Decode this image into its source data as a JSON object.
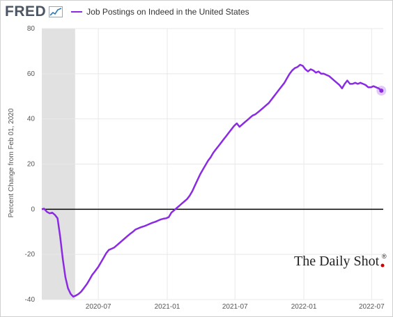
{
  "header": {
    "logo": "FRED",
    "logo_mark_icon": "fred-chart-icon"
  },
  "chart_data": {
    "type": "line",
    "series": [
      {
        "name": "Job Postings on Indeed in the United States",
        "color": "#8A2BE2",
        "points": [
          [
            "2020-02-01",
            0
          ],
          [
            "2020-02-07",
            0.3
          ],
          [
            "2020-02-15",
            -1.2
          ],
          [
            "2020-02-22",
            -1.8
          ],
          [
            "2020-02-29",
            -1.5
          ],
          [
            "2020-03-07",
            -2.5
          ],
          [
            "2020-03-14",
            -4
          ],
          [
            "2020-03-21",
            -12
          ],
          [
            "2020-03-28",
            -22
          ],
          [
            "2020-04-04",
            -30
          ],
          [
            "2020-04-11",
            -35
          ],
          [
            "2020-04-18",
            -37.5
          ],
          [
            "2020-04-25",
            -38.7
          ],
          [
            "2020-05-02",
            -38.2
          ],
          [
            "2020-05-09",
            -37.5
          ],
          [
            "2020-05-16",
            -36.5
          ],
          [
            "2020-05-23",
            -35
          ],
          [
            "2020-06-01",
            -33
          ],
          [
            "2020-06-08",
            -31
          ],
          [
            "2020-06-15",
            -29
          ],
          [
            "2020-06-22",
            -27.5
          ],
          [
            "2020-07-01",
            -25.5
          ],
          [
            "2020-07-08",
            -23.5
          ],
          [
            "2020-07-15",
            -21.5
          ],
          [
            "2020-07-22",
            -19.5
          ],
          [
            "2020-07-29",
            -18
          ],
          [
            "2020-08-05",
            -17.5
          ],
          [
            "2020-08-12",
            -17
          ],
          [
            "2020-08-19",
            -16
          ],
          [
            "2020-08-26",
            -15
          ],
          [
            "2020-09-02",
            -14
          ],
          [
            "2020-09-09",
            -13
          ],
          [
            "2020-09-16",
            -12
          ],
          [
            "2020-09-23",
            -11
          ],
          [
            "2020-10-01",
            -10
          ],
          [
            "2020-10-08",
            -9
          ],
          [
            "2020-10-15",
            -8.5
          ],
          [
            "2020-10-22",
            -8
          ],
          [
            "2020-11-01",
            -7.5
          ],
          [
            "2020-11-08",
            -7
          ],
          [
            "2020-11-15",
            -6.5
          ],
          [
            "2020-11-22",
            -6
          ],
          [
            "2020-12-01",
            -5.5
          ],
          [
            "2020-12-08",
            -5
          ],
          [
            "2020-12-15",
            -4.5
          ],
          [
            "2020-12-22",
            -4.2
          ],
          [
            "2020-12-29",
            -4
          ],
          [
            "2021-01-05",
            -3.5
          ],
          [
            "2021-01-12",
            -1.5
          ],
          [
            "2021-01-19",
            -0.5
          ],
          [
            "2021-01-26",
            0.5
          ],
          [
            "2021-02-02",
            1.5
          ],
          [
            "2021-02-09",
            2.5
          ],
          [
            "2021-02-16",
            3.5
          ],
          [
            "2021-02-23",
            4.5
          ],
          [
            "2021-03-02",
            6
          ],
          [
            "2021-03-09",
            8
          ],
          [
            "2021-03-16",
            10.5
          ],
          [
            "2021-03-23",
            13
          ],
          [
            "2021-03-30",
            15.5
          ],
          [
            "2021-04-06",
            17.5
          ],
          [
            "2021-04-13",
            19.5
          ],
          [
            "2021-04-20",
            21.5
          ],
          [
            "2021-04-27",
            23
          ],
          [
            "2021-05-04",
            25
          ],
          [
            "2021-05-11",
            26.5
          ],
          [
            "2021-05-18",
            28
          ],
          [
            "2021-05-25",
            29.5
          ],
          [
            "2021-06-01",
            31
          ],
          [
            "2021-06-08",
            32.5
          ],
          [
            "2021-06-15",
            34
          ],
          [
            "2021-06-22",
            35.5
          ],
          [
            "2021-06-29",
            37
          ],
          [
            "2021-07-06",
            38
          ],
          [
            "2021-07-13",
            36.5
          ],
          [
            "2021-07-20",
            37.5
          ],
          [
            "2021-07-27",
            38.5
          ],
          [
            "2021-08-03",
            39.5
          ],
          [
            "2021-08-10",
            40.5
          ],
          [
            "2021-08-17",
            41.5
          ],
          [
            "2021-08-24",
            42
          ],
          [
            "2021-09-01",
            43
          ],
          [
            "2021-09-08",
            44
          ],
          [
            "2021-09-15",
            45
          ],
          [
            "2021-09-22",
            46
          ],
          [
            "2021-09-29",
            47
          ],
          [
            "2021-10-06",
            48.5
          ],
          [
            "2021-10-13",
            50
          ],
          [
            "2021-10-20",
            51.5
          ],
          [
            "2021-10-27",
            53
          ],
          [
            "2021-11-03",
            54.5
          ],
          [
            "2021-11-10",
            56
          ],
          [
            "2021-11-17",
            58
          ],
          [
            "2021-11-24",
            60
          ],
          [
            "2021-12-01",
            61.5
          ],
          [
            "2021-12-08",
            62.5
          ],
          [
            "2021-12-15",
            63
          ],
          [
            "2021-12-22",
            64
          ],
          [
            "2021-12-29",
            63.5
          ],
          [
            "2022-01-05",
            62
          ],
          [
            "2022-01-12",
            61
          ],
          [
            "2022-01-19",
            62
          ],
          [
            "2022-01-26",
            61.5
          ],
          [
            "2022-02-02",
            60.5
          ],
          [
            "2022-02-09",
            61
          ],
          [
            "2022-02-16",
            60
          ],
          [
            "2022-02-23",
            60
          ],
          [
            "2022-03-02",
            59.5
          ],
          [
            "2022-03-09",
            59
          ],
          [
            "2022-03-16",
            58
          ],
          [
            "2022-03-23",
            57
          ],
          [
            "2022-03-30",
            56
          ],
          [
            "2022-04-06",
            55
          ],
          [
            "2022-04-13",
            53.5
          ],
          [
            "2022-04-20",
            55.5
          ],
          [
            "2022-04-27",
            57
          ],
          [
            "2022-05-04",
            55.5
          ],
          [
            "2022-05-11",
            55.5
          ],
          [
            "2022-05-18",
            56
          ],
          [
            "2022-05-25",
            55.5
          ],
          [
            "2022-06-01",
            56
          ],
          [
            "2022-06-08",
            55.5
          ],
          [
            "2022-06-15",
            55
          ],
          [
            "2022-06-22",
            54
          ],
          [
            "2022-06-29",
            54
          ],
          [
            "2022-07-06",
            54.5
          ],
          [
            "2022-07-13",
            54
          ],
          [
            "2022-07-20",
            53.5
          ],
          [
            "2022-07-27",
            52.5
          ]
        ]
      }
    ],
    "xlabel": "",
    "ylabel": "Percent Change from Feb 01, 2020",
    "ylim": [
      -40,
      80
    ],
    "yticks": [
      -40,
      -20,
      0,
      20,
      40,
      60,
      80
    ],
    "ytick_labels": [
      "-40",
      "-20",
      "0",
      "20",
      "40",
      "60",
      "80"
    ],
    "xlim": [
      "2020-02-01",
      "2022-08-01"
    ],
    "xticks": [
      "2020-07-01",
      "2021-01-01",
      "2021-07-01",
      "2022-01-01",
      "2022-07-01"
    ],
    "xtick_labels": [
      "2020-07",
      "2021-01",
      "2021-07",
      "2022-01",
      "2022-07"
    ],
    "recession_shading": [
      "2020-02-01",
      "2020-04-30"
    ],
    "recession_color": "#e1e1e1",
    "zero_line": true,
    "grid": "horizontal and vertical",
    "grid_color": "#e8e8e8",
    "legend_position": "top-left",
    "endpoint_marker": true
  },
  "watermark": {
    "text": "The Daily Shot",
    "mark": "®",
    "dot_color": "#cc0000"
  }
}
